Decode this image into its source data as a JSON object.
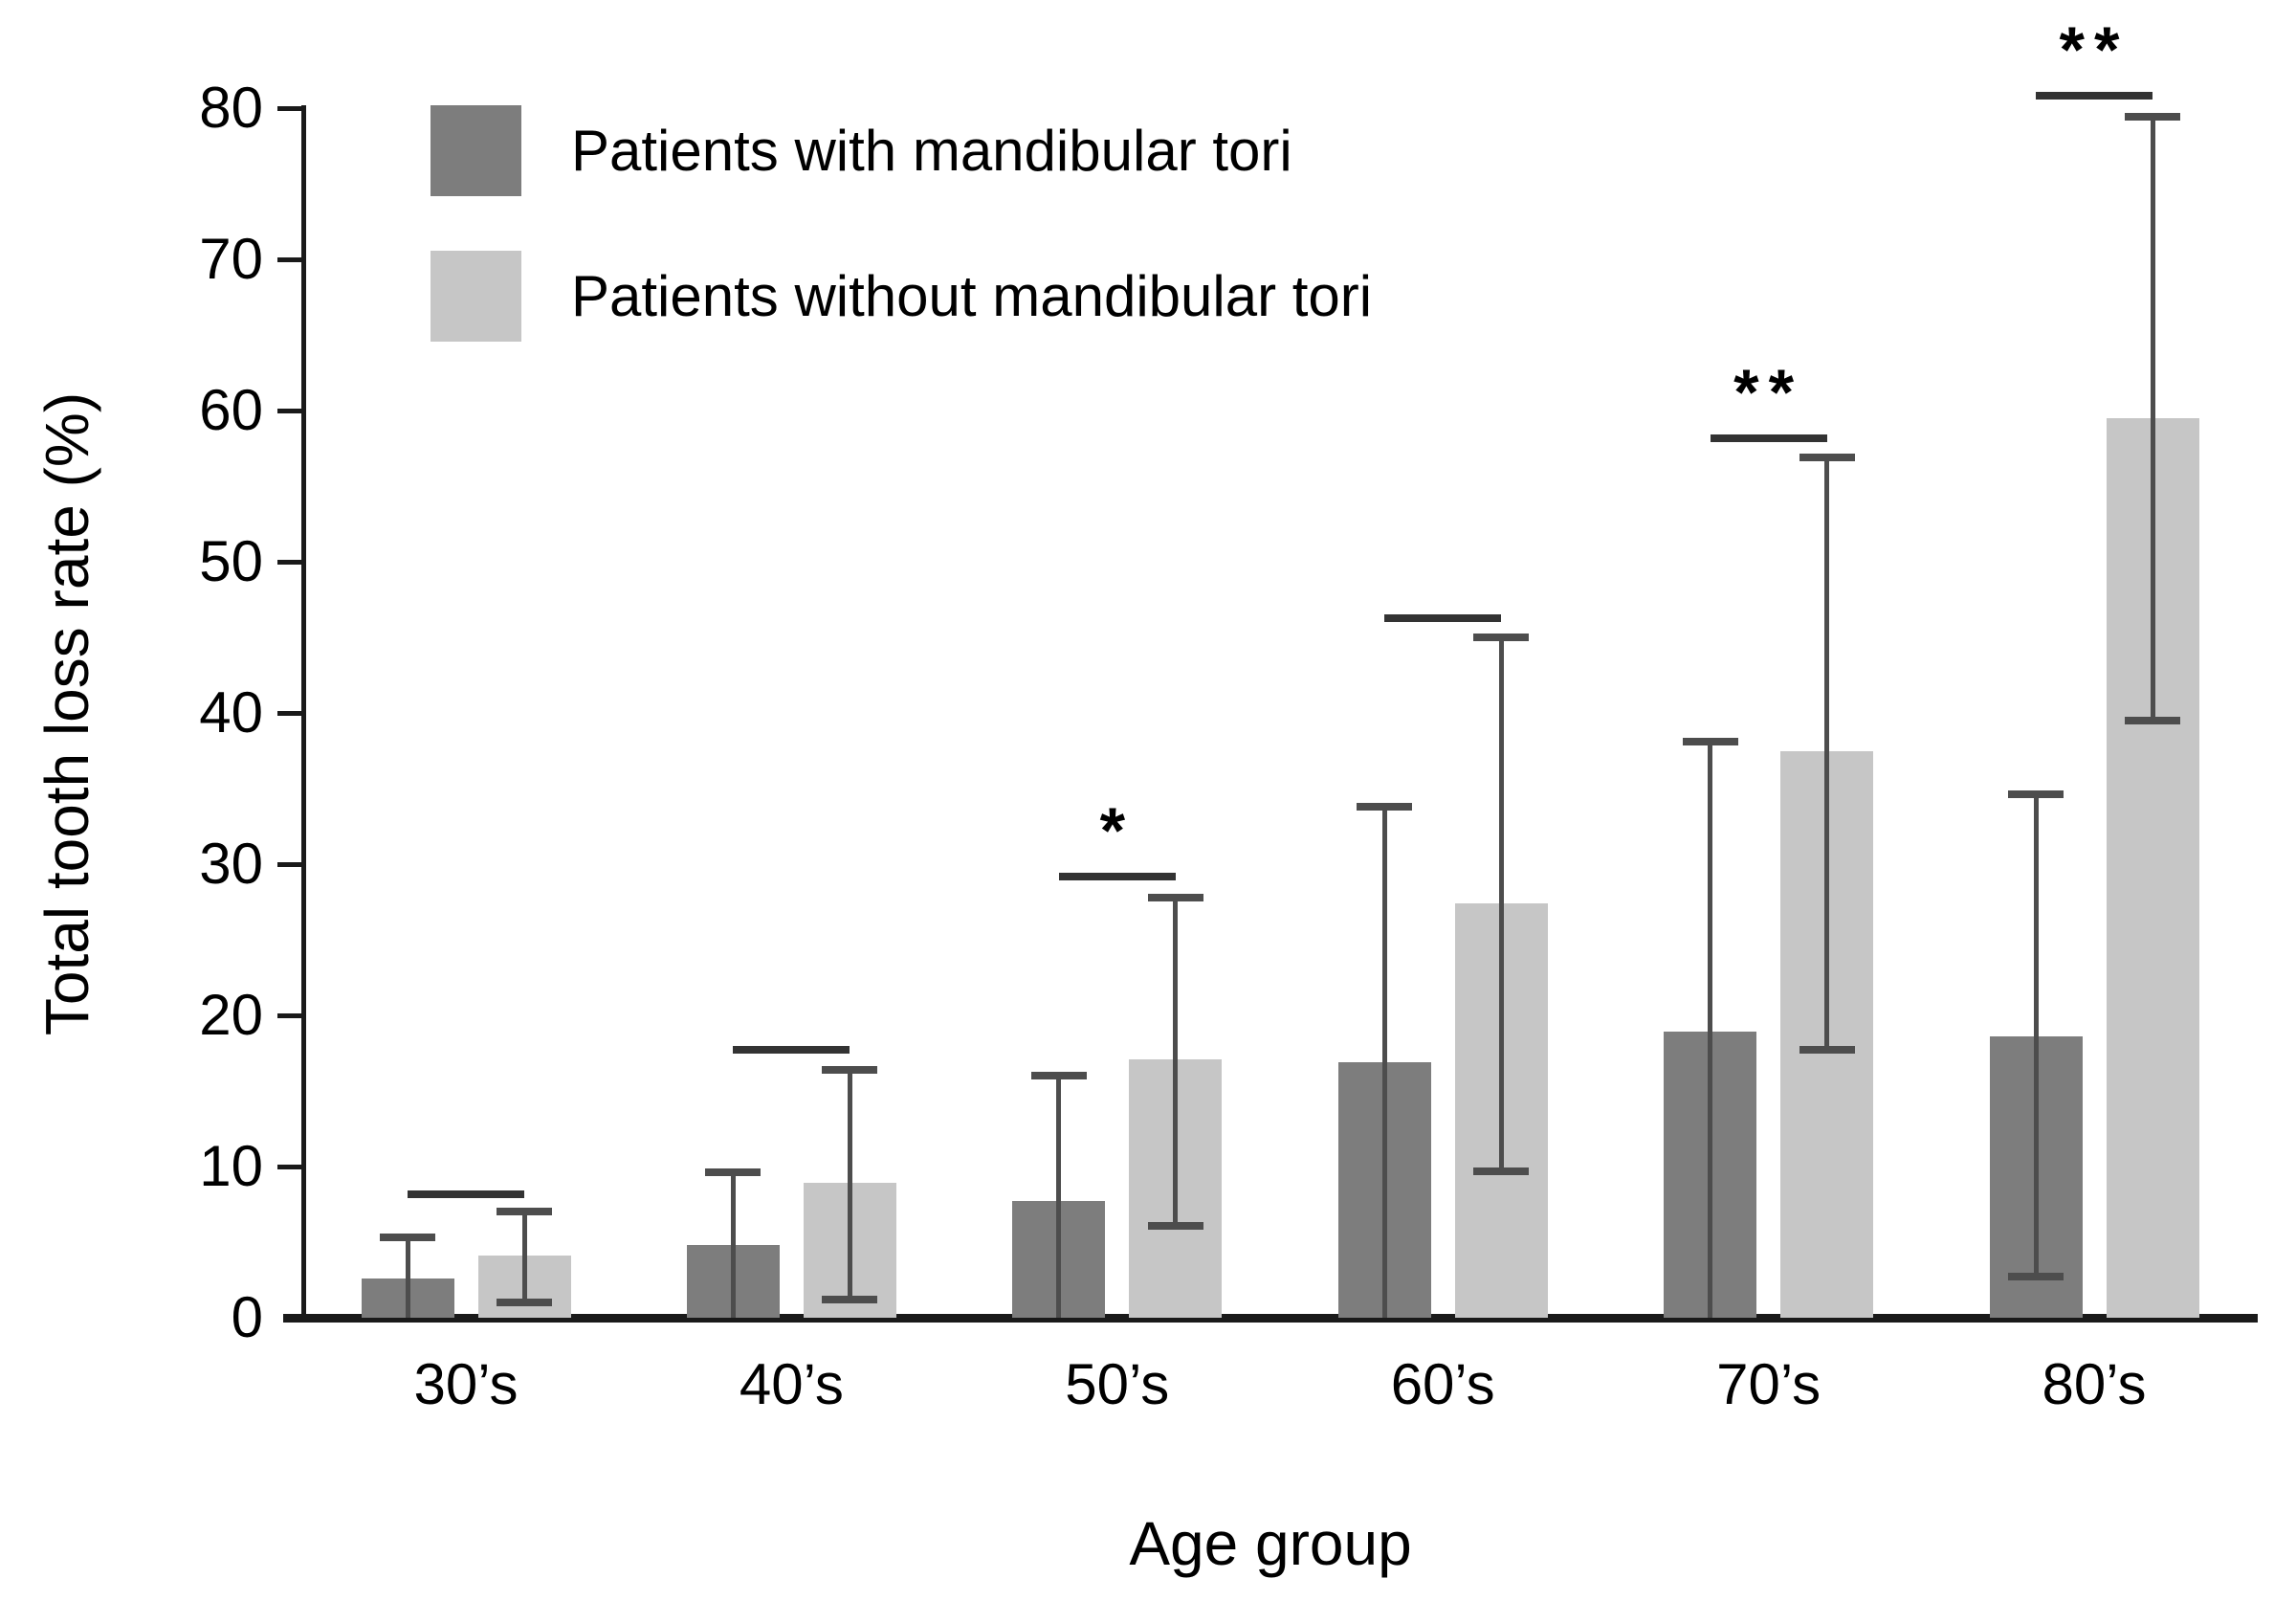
{
  "figure": {
    "xlabel": "Age group",
    "ylabel": "Total tooth loss rate (%)"
  },
  "colors": {
    "with_tori_bar": "#7d7d7d",
    "without_tori_bar": "#c6c6c6",
    "error_bar": "#4d4d4d",
    "axis": "#1a1a1a",
    "significance_line": "#333333"
  },
  "chart_data": {
    "type": "bar",
    "title": "",
    "xlabel": "Age group",
    "ylabel": "Total tooth loss rate (%)",
    "categories": [
      "30’s",
      "40’s",
      "50’s",
      "60’s",
      "70’s",
      "80’s"
    ],
    "series": [
      {
        "name": "Patients with mandibular tori",
        "color": "#7d7d7d",
        "values": [
          2.6,
          4.8,
          7.7,
          16.9,
          18.9,
          18.6
        ],
        "upper_whisker": [
          5.3,
          9.6,
          16.0,
          33.8,
          38.1,
          34.6
        ],
        "lower_whisker": [
          0,
          0,
          0,
          0,
          0,
          2.7
        ]
      },
      {
        "name": "Patients without mandibular tori",
        "color": "#c6c6c6",
        "values": [
          4.1,
          8.9,
          17.1,
          27.4,
          37.5,
          59.5
        ],
        "upper_whisker": [
          7.0,
          16.4,
          27.8,
          45.0,
          56.9,
          79.4
        ],
        "lower_whisker": [
          1.0,
          1.2,
          6.1,
          9.7,
          17.7,
          39.5
        ]
      }
    ],
    "significance": [
      {
        "category": "30’s",
        "label": "",
        "y": 8.4
      },
      {
        "category": "40’s",
        "label": "",
        "y": 18.0
      },
      {
        "category": "50’s",
        "label": "*",
        "y": 29.4
      },
      {
        "category": "60’s",
        "label": "",
        "y": 46.5
      },
      {
        "category": "70’s",
        "label": "**",
        "y": 58.4
      },
      {
        "category": "80’s",
        "label": "**",
        "y": 81.1
      }
    ],
    "yticks": [
      0,
      10,
      20,
      30,
      40,
      50,
      60,
      70,
      80
    ],
    "ylim": [
      0,
      80
    ],
    "grid": false,
    "legend_position": "upper-left-inside"
  }
}
